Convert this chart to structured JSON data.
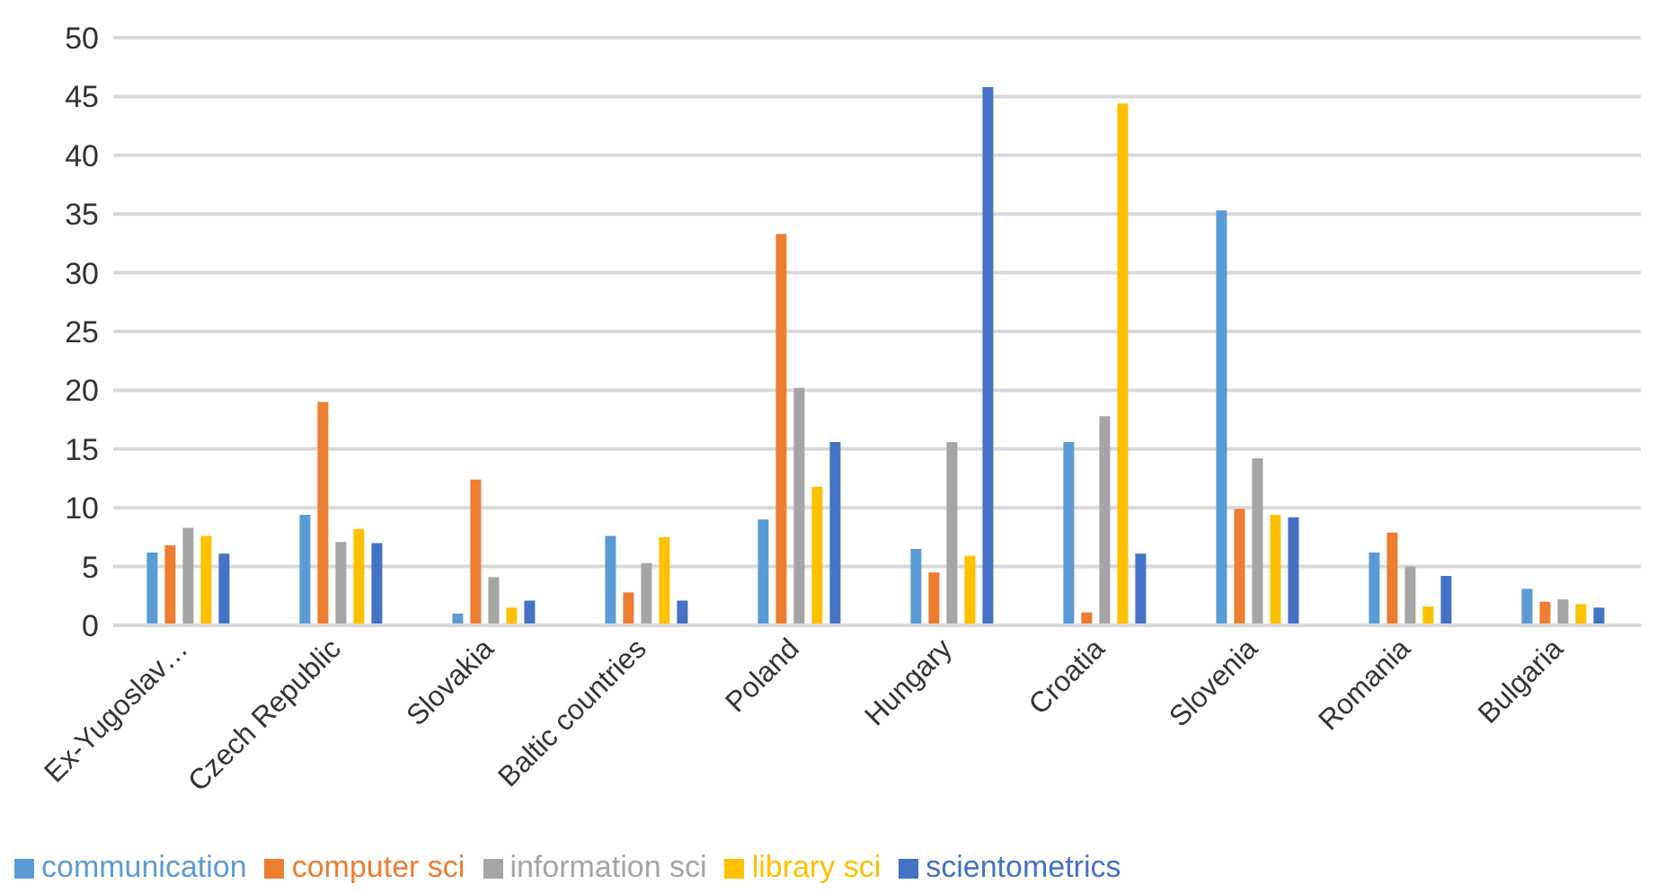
{
  "chart_data": {
    "type": "bar",
    "categories": [
      "Ex-Yugoslav…",
      "Czech Republic",
      "Slovakia",
      "Baltic countries",
      "Poland",
      "Hungary",
      "Croatia",
      "Slovenia",
      "Romania",
      "Bulgaria"
    ],
    "series": [
      {
        "name": "communication",
        "color": "#5b9bd5",
        "values": [
          6.2,
          9.4,
          1.0,
          7.6,
          9.0,
          6.5,
          15.6,
          35.3,
          6.2,
          3.1
        ]
      },
      {
        "name": "computer sci",
        "color": "#ed7d31",
        "values": [
          6.8,
          19.0,
          12.4,
          2.8,
          33.3,
          4.5,
          1.1,
          9.9,
          7.9,
          2.0
        ]
      },
      {
        "name": "information sci",
        "color": "#a5a5a5",
        "values": [
          8.3,
          7.1,
          4.1,
          5.3,
          20.2,
          15.6,
          17.8,
          14.2,
          5.0,
          2.2
        ]
      },
      {
        "name": "library sci",
        "color": "#ffc000",
        "values": [
          7.6,
          8.2,
          1.5,
          7.5,
          11.8,
          5.9,
          44.4,
          9.4,
          1.6,
          1.8
        ]
      },
      {
        "name": "scientometrics",
        "color": "#4472c4",
        "values": [
          6.1,
          7.0,
          2.1,
          2.1,
          15.6,
          45.8,
          6.1,
          9.2,
          4.2,
          1.5
        ]
      }
    ],
    "ylim": [
      0,
      50
    ],
    "yticks": [
      0,
      5,
      10,
      15,
      20,
      25,
      30,
      35,
      40,
      45,
      50
    ],
    "grid": "y",
    "legend": "bottom"
  }
}
